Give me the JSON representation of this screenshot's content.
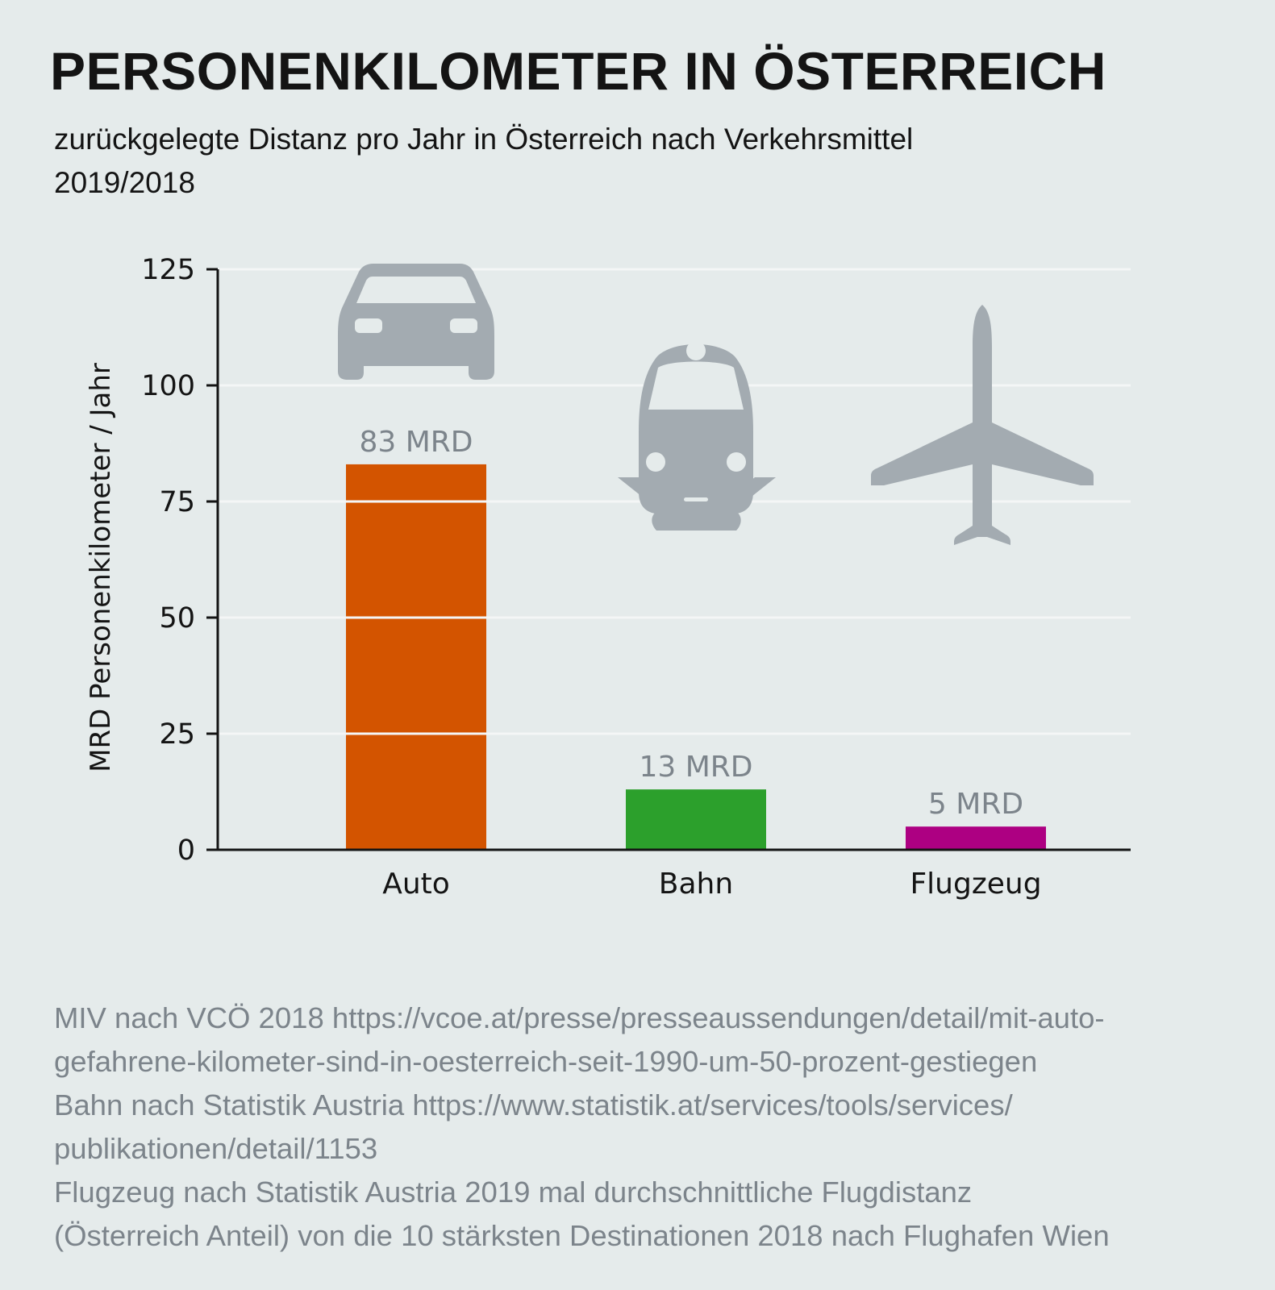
{
  "title": "PERSONENKILOMETER IN ÖSTERREICH",
  "subtitle_lines": [
    "zurückgelegte Distanz pro Jahr in Österreich nach Verkehrsmittel",
    "2019/2018"
  ],
  "chart_data": {
    "type": "bar",
    "categories": [
      "Auto",
      "Bahn",
      "Flugzeug"
    ],
    "values": [
      83,
      13,
      5
    ],
    "data_labels": [
      "83 MRD",
      "13 MRD",
      "5 MRD"
    ],
    "icons": [
      "car-icon",
      "train-icon",
      "airplane-icon"
    ],
    "colors": [
      "#d35400",
      "#2ca02c",
      "#ad0082"
    ],
    "ylabel": "MRD Personenkilometer / Jahr",
    "ylim": [
      0,
      125
    ],
    "yticks": [
      0,
      25,
      50,
      75,
      100,
      125
    ],
    "grid": true,
    "gridline_color": "#f4f6f6",
    "icon_color": "#a3abb1",
    "label_color": "#7c848b",
    "axis_color": "#141414"
  },
  "sources": [
    "MIV nach VCÖ 2018 https://vcoe.at/presse/presseaussendungen/detail/mit-auto-",
    "gefahrene-kilometer-sind-in-oesterreich-seit-1990-um-50-prozent-gestiegen",
    "Bahn nach Statistik Austria https://www.statistik.at/services/tools/services/",
    "publikationen/detail/1153",
    "Flugzeug nach Statistik Austria 2019 mal durchschnittliche Flugdistanz",
    "(Österreich Anteil) von die 10 stärksten Destinationen 2018 nach Flughafen Wien"
  ]
}
